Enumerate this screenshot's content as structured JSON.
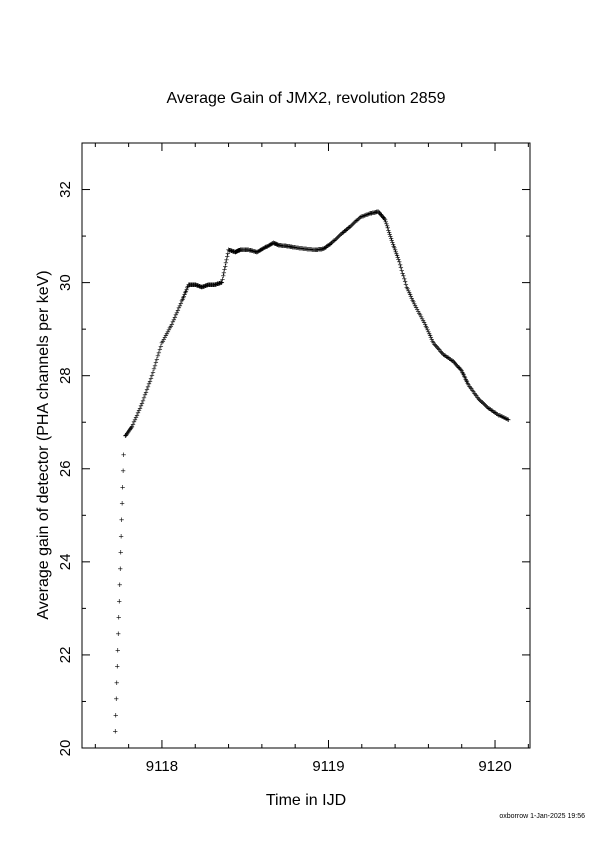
{
  "chart_data": {
    "type": "scatter",
    "title": "Average Gain of JMX2, revolution 2859",
    "xlabel": "Time in IJD",
    "ylabel": "Average gain of detector (PHA channels per keV)",
    "xlim": [
      9117.52,
      9120.21
    ],
    "ylim": [
      20,
      33
    ],
    "xticks": [
      9118,
      9119,
      9120
    ],
    "yticks": [
      20,
      22,
      24,
      26,
      28,
      30,
      32
    ],
    "marker": "+",
    "grid": false,
    "legend": "none",
    "color": "#000000",
    "dense_x": [
      9117.78,
      9117.82,
      9117.88,
      9117.94,
      9118.0,
      9118.06,
      9118.12,
      9118.16,
      9118.2,
      9118.24,
      9118.28,
      9118.32,
      9118.36,
      9118.4,
      9118.44,
      9118.47,
      9118.52,
      9118.57,
      9118.62,
      9118.67,
      9118.7,
      9118.75,
      9118.8,
      9118.86,
      9118.92,
      9118.97,
      9119.02,
      9119.08,
      9119.13,
      9119.19,
      9119.25,
      9119.3,
      9119.34,
      9119.38,
      9119.42,
      9119.47,
      9119.52,
      9119.58,
      9119.63,
      9119.69,
      9119.75,
      9119.8,
      9119.84,
      9119.9,
      9119.96,
      9120.02,
      9120.08
    ],
    "dense_y": [
      26.7,
      26.9,
      27.4,
      28.0,
      28.7,
      29.1,
      29.6,
      29.95,
      29.95,
      29.9,
      29.95,
      29.95,
      30.0,
      30.7,
      30.65,
      30.7,
      30.7,
      30.65,
      30.75,
      30.85,
      30.8,
      30.78,
      30.75,
      30.72,
      30.7,
      30.72,
      30.85,
      31.05,
      31.2,
      31.4,
      31.48,
      31.52,
      31.35,
      30.9,
      30.5,
      29.9,
      29.5,
      29.1,
      28.7,
      28.45,
      28.3,
      28.1,
      27.8,
      27.5,
      27.3,
      27.15,
      27.05
    ],
    "ramp_x": [
      9117.72,
      9117.77
    ],
    "ramp_y": [
      20.35,
      26.3
    ],
    "ramp_points": 18
  },
  "footer": {
    "stamp": "oxborrow  1-Jan-2025 19:56"
  }
}
